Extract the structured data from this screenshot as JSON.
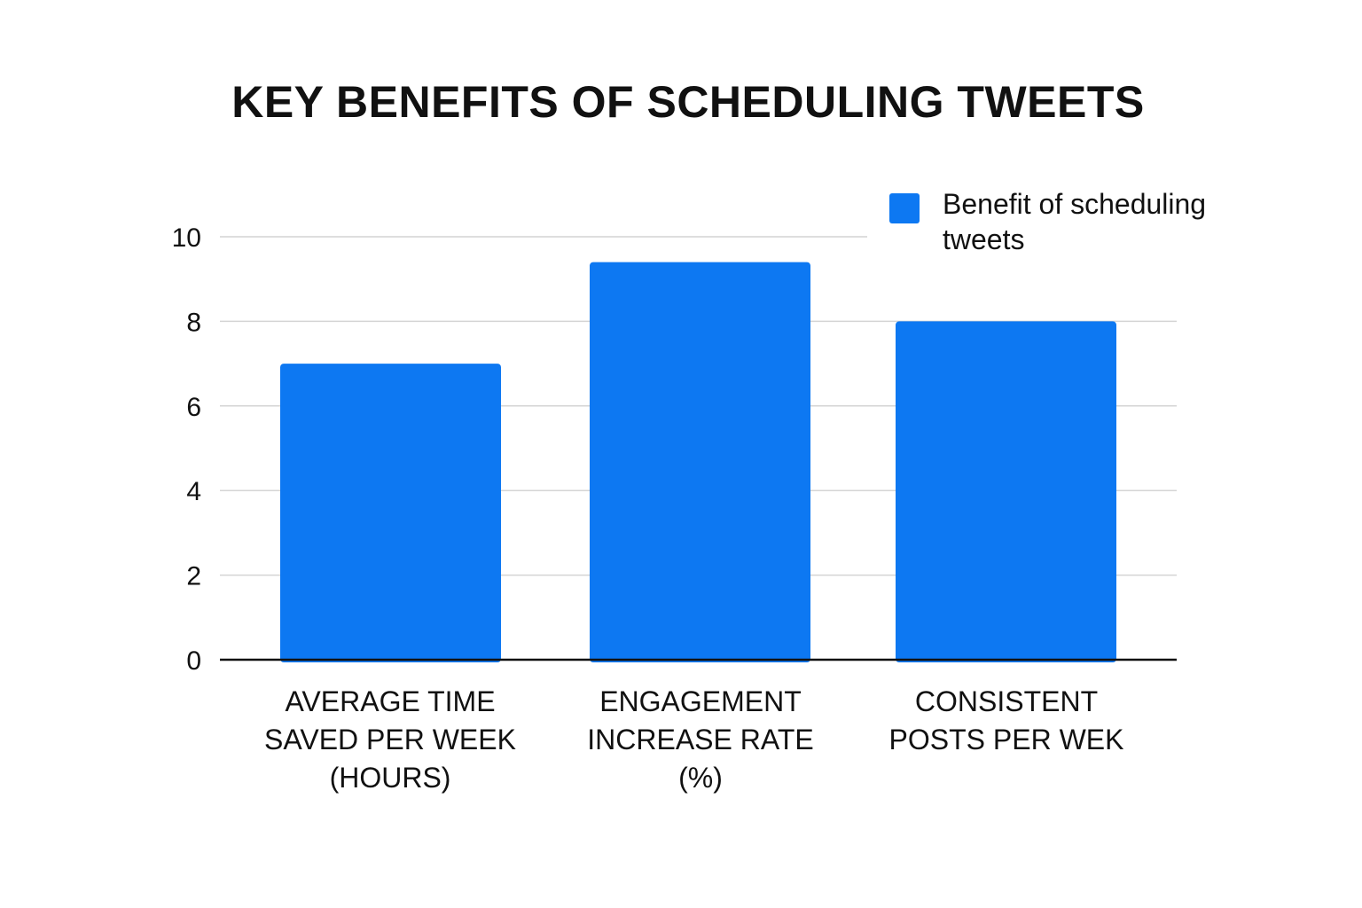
{
  "chart_data": {
    "type": "bar",
    "title": "KEY BENEFITS OF SCHEDULING TWEETS",
    "categories": [
      "AVERAGE TIME SAVED PER WEEK (HOURS)",
      "ENGAGEMENT INCREASE RATE (%)",
      "CONSISTENT POSTS PER WEK"
    ],
    "series": [
      {
        "name": "Benefit of scheduling tweets",
        "values": [
          7,
          9.4,
          8
        ],
        "color": "#0d78f2"
      }
    ],
    "yticks": [
      "0",
      "2",
      "4",
      "6",
      "8",
      "10"
    ],
    "ylim": [
      0,
      10
    ],
    "grid": true,
    "legend_position": "top-right"
  }
}
